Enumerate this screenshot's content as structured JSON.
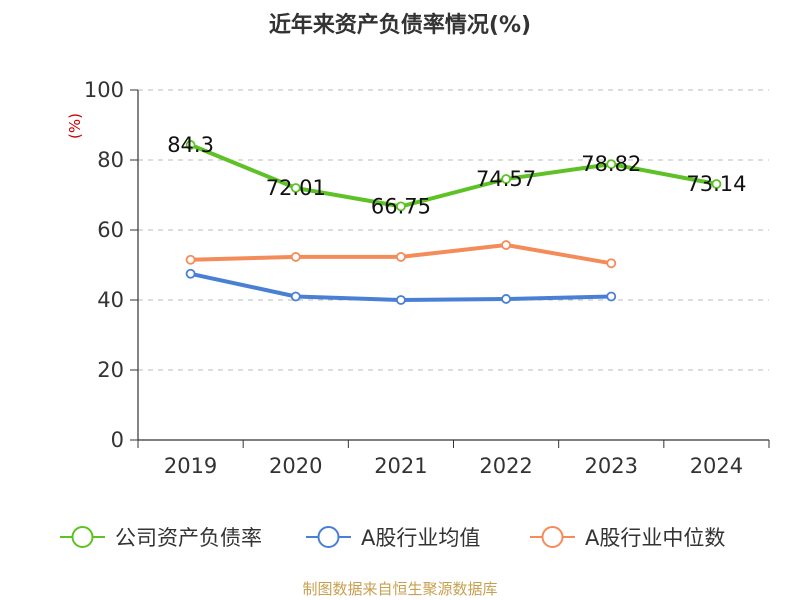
{
  "chart_data": {
    "type": "line",
    "title": "近年来资产负债率情况(%)",
    "ylabel": "(%)",
    "xlabel": "",
    "categories": [
      "2019",
      "2020",
      "2021",
      "2022",
      "2023",
      "2024"
    ],
    "ylim": [
      0,
      100
    ],
    "yticks": [
      "0",
      "20",
      "40",
      "60",
      "80",
      "100"
    ],
    "grid": true,
    "legend_position": "bottom",
    "series": [
      {
        "name": "公司资产负债率",
        "color": "#5ec226",
        "values": [
          84.3,
          72.01,
          66.75,
          74.57,
          78.82,
          73.14
        ],
        "labels": [
          "84.3",
          "72.01",
          "66.75",
          "74.57",
          "78.82",
          "73.14"
        ]
      },
      {
        "name": "A股行业均值",
        "color": "#4a7fd6",
        "values": [
          47.5,
          41.0,
          40.0,
          40.3,
          41.0,
          null
        ]
      },
      {
        "name": "A股行业中位数",
        "color": "#f48c5a",
        "values": [
          51.5,
          52.3,
          52.3,
          55.7,
          50.5,
          null
        ]
      }
    ],
    "source": "制图数据来自恒生聚源数据库"
  }
}
